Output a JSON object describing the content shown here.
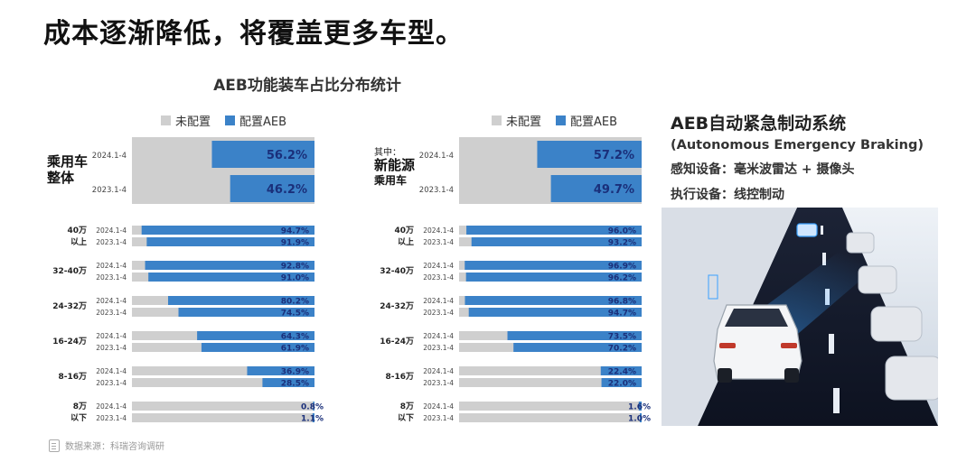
{
  "headline": "成本逐渐降低，将覆盖更多车型。",
  "chart_title": "AEB功能装车占比分布统计",
  "legend": {
    "not_equipped": "未配置",
    "equipped": "配置AEB"
  },
  "info": {
    "title": "AEB自动紧急制动系统",
    "subtitle": "(Autonomous Emergency Braking)",
    "sensing": "感知设备：毫米波雷达 + 摄像头",
    "actuation": "执行设备：线控制动"
  },
  "source": "数据来源：科瑞咨询调研",
  "colors": {
    "equipped": "#3b82c8",
    "not_equipped": "#cfcfcf",
    "value_text": "#1a2f7a"
  },
  "chart_data": [
    {
      "type": "bar",
      "segment_label": [
        "乘用车",
        "整体"
      ],
      "total_rows": [
        {
          "period": "2024.1-4",
          "value": 56.2
        },
        {
          "period": "2023.1-4",
          "value": 46.2
        }
      ],
      "groups": [
        {
          "label": [
            "40万",
            "以上"
          ],
          "rows": [
            {
              "period": "2024.1-4",
              "value": 94.7
            },
            {
              "period": "2023.1-4",
              "value": 91.9
            }
          ]
        },
        {
          "label": [
            "32-40万"
          ],
          "rows": [
            {
              "period": "2024.1-4",
              "value": 92.8
            },
            {
              "period": "2023.1-4",
              "value": 91.0
            }
          ]
        },
        {
          "label": [
            "24-32万"
          ],
          "rows": [
            {
              "period": "2024.1-4",
              "value": 80.2
            },
            {
              "period": "2023.1-4",
              "value": 74.5
            }
          ]
        },
        {
          "label": [
            "16-24万"
          ],
          "rows": [
            {
              "period": "2024.1-4",
              "value": 64.3
            },
            {
              "period": "2023.1-4",
              "value": 61.9
            }
          ]
        },
        {
          "label": [
            "8-16万"
          ],
          "rows": [
            {
              "period": "2024.1-4",
              "value": 36.9
            },
            {
              "period": "2023.1-4",
              "value": 28.5
            }
          ]
        },
        {
          "label": [
            "8万",
            "以下"
          ],
          "rows": [
            {
              "period": "2024.1-4",
              "value": 0.8
            },
            {
              "period": "2023.1-4",
              "value": 1.1
            }
          ]
        }
      ],
      "ylim": [
        0,
        100
      ]
    },
    {
      "type": "bar",
      "segment_prefix": "其中：",
      "segment_label": [
        "新能源",
        "乘用车"
      ],
      "total_rows": [
        {
          "period": "2024.1-4",
          "value": 57.2
        },
        {
          "period": "2023.1-4",
          "value": 49.7
        }
      ],
      "groups": [
        {
          "label": [
            "40万",
            "以上"
          ],
          "rows": [
            {
              "period": "2024.1-4",
              "value": 96.0
            },
            {
              "period": "2023.1-4",
              "value": 93.2
            }
          ]
        },
        {
          "label": [
            "32-40万"
          ],
          "rows": [
            {
              "period": "2024.1-4",
              "value": 96.9
            },
            {
              "period": "2023.1-4",
              "value": 96.2
            }
          ]
        },
        {
          "label": [
            "24-32万"
          ],
          "rows": [
            {
              "period": "2024.1-4",
              "value": 96.8
            },
            {
              "period": "2023.1-4",
              "value": 94.7
            }
          ]
        },
        {
          "label": [
            "16-24万"
          ],
          "rows": [
            {
              "period": "2024.1-4",
              "value": 73.5
            },
            {
              "period": "2023.1-4",
              "value": 70.2
            }
          ]
        },
        {
          "label": [
            "8-16万"
          ],
          "rows": [
            {
              "period": "2024.1-4",
              "value": 22.4
            },
            {
              "period": "2023.1-4",
              "value": 22.0
            }
          ]
        },
        {
          "label": [
            "8万",
            "以下"
          ],
          "rows": [
            {
              "period": "2024.1-4",
              "value": 1.6
            },
            {
              "period": "2023.1-4",
              "value": 1.0
            }
          ]
        }
      ],
      "ylim": [
        0,
        100
      ]
    }
  ]
}
